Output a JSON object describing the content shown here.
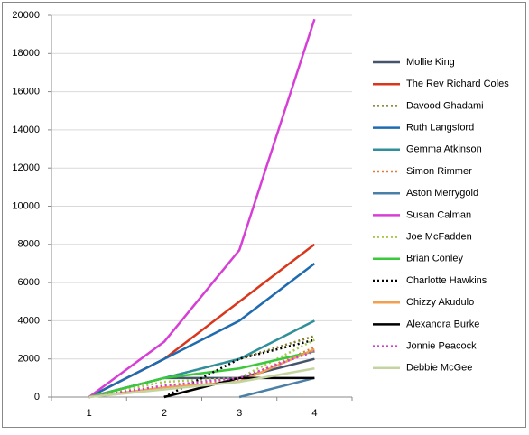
{
  "chart_data": {
    "type": "line",
    "categories": [
      "1",
      "2",
      "3",
      "4"
    ],
    "ylim": [
      0,
      20000
    ],
    "yticks": [
      0,
      2000,
      4000,
      6000,
      8000,
      10000,
      12000,
      14000,
      16000,
      18000,
      20000
    ],
    "grid": true,
    "legend": "right",
    "series": [
      {
        "name": "Mollie King",
        "color": "#44546a",
        "dotted": false,
        "values": [
          0,
          1000,
          1000,
          2000
        ]
      },
      {
        "name": "The Rev Richard Coles",
        "color": "#d9361c",
        "dotted": false,
        "values": [
          0,
          2000,
          5000,
          8000
        ]
      },
      {
        "name": "Davood Ghadami",
        "color": "#7f7f2a",
        "dotted": true,
        "values": [
          0,
          1000,
          2000,
          3200
        ]
      },
      {
        "name": "Ruth Langsford",
        "color": "#1f6bb0",
        "dotted": false,
        "values": [
          0,
          2000,
          4000,
          7000
        ]
      },
      {
        "name": "Gemma Atkinson",
        "color": "#2f8f9a",
        "dotted": false,
        "values": [
          0,
          1000,
          2000,
          4000
        ]
      },
      {
        "name": "Simon Rimmer",
        "color": "#e07b39",
        "dotted": true,
        "values": [
          0,
          600,
          900,
          2600
        ]
      },
      {
        "name": "Aston Merrygold",
        "color": "#4a7fa8",
        "dotted": false,
        "values": [
          null,
          null,
          0,
          1000
        ]
      },
      {
        "name": "Susan Calman",
        "color": "#d63fd6",
        "dotted": false,
        "values": [
          0,
          2900,
          7700,
          19800
        ]
      },
      {
        "name": "Joe McFadden",
        "color": "#a6c94a",
        "dotted": true,
        "values": [
          0,
          800,
          1000,
          3000
        ]
      },
      {
        "name": "Brian Conley",
        "color": "#3cc83c",
        "dotted": false,
        "values": [
          0,
          1000,
          1500,
          2400
        ]
      },
      {
        "name": "Charlotte Hawkins",
        "color": "#000000",
        "dotted": true,
        "values": [
          null,
          0,
          2000,
          3000
        ]
      },
      {
        "name": "Chizzy Akudulo",
        "color": "#f0a050",
        "dotted": false,
        "values": [
          0,
          500,
          800,
          2500
        ]
      },
      {
        "name": "Alexandra Burke",
        "color": "#000000",
        "dotted": false,
        "values": [
          null,
          0,
          1000,
          1000
        ]
      },
      {
        "name": "Jonnie Peacock",
        "color": "#d040d0",
        "dotted": true,
        "values": [
          0,
          600,
          1000,
          2400
        ]
      },
      {
        "name": "Debbie McGee",
        "color": "#c4d4a0",
        "dotted": false,
        "values": [
          0,
          400,
          800,
          1500
        ]
      }
    ]
  }
}
